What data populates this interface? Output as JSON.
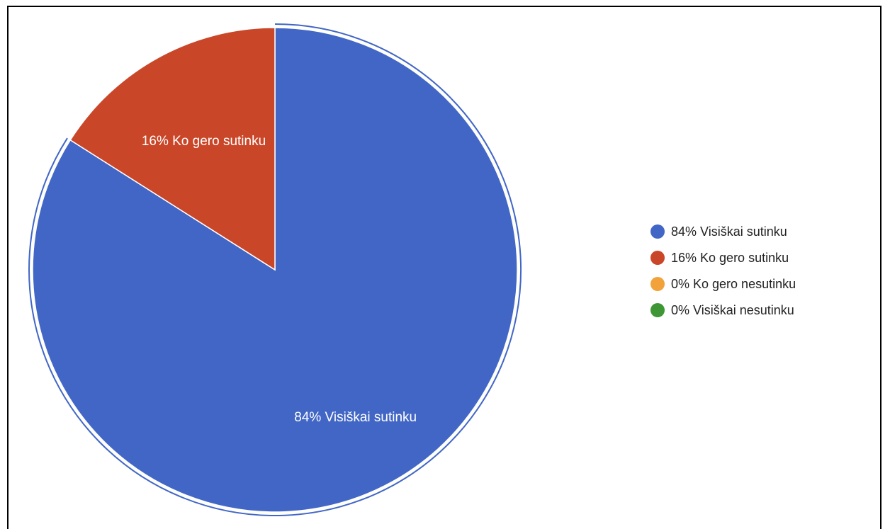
{
  "chart_data": {
    "type": "pie",
    "slices": [
      {
        "label": "Visiškai sutinku",
        "value": 84,
        "display": "84% Visiškai sutinku",
        "color": "#4166c5"
      },
      {
        "label": "Ko gero sutinku",
        "value": 16,
        "display": "16% Ko gero sutinku",
        "color": "#ca4628"
      },
      {
        "label": "Ko gero nesutinku",
        "value": 0,
        "display": "0% Ko gero nesutinku",
        "color": "#f2a23a"
      },
      {
        "label": "Visiškai nesutinku",
        "value": 0,
        "display": "0% Visiškai nesutinku",
        "color": "#3f9634"
      }
    ],
    "legend_position": "right",
    "selected_slice": "Visiškai sutinku"
  }
}
